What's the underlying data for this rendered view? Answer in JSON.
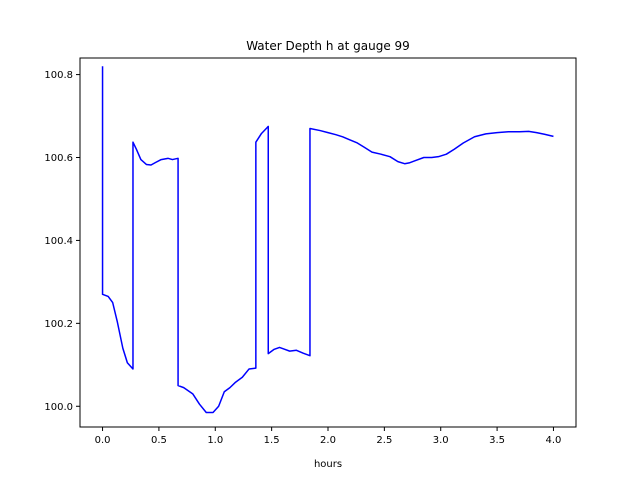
{
  "chart_data": {
    "type": "line",
    "title": "Water Depth h at gauge 99",
    "xlabel": "hours",
    "ylabel": "",
    "xlim": [
      -0.2,
      4.2
    ],
    "ylim": [
      99.95,
      100.84
    ],
    "x_ticks": [
      0.0,
      0.5,
      1.0,
      1.5,
      2.0,
      2.5,
      3.0,
      3.5,
      4.0
    ],
    "x_tick_labels": [
      "0.0",
      "0.5",
      "1.0",
      "1.5",
      "2.0",
      "2.5",
      "3.0",
      "3.5",
      "4.0"
    ],
    "y_ticks": [
      100.0,
      100.2,
      100.4,
      100.6,
      100.8
    ],
    "y_tick_labels": [
      "100.0",
      "100.2",
      "100.4",
      "100.6",
      "100.8"
    ],
    "grid": false,
    "legend": "none",
    "series": [
      {
        "color": "#0000ff",
        "x": [
          0.0,
          0.0,
          0.0,
          0.05,
          0.09,
          0.13,
          0.18,
          0.22,
          0.27,
          0.27,
          0.3,
          0.34,
          0.39,
          0.43,
          0.47,
          0.52,
          0.58,
          0.62,
          0.67,
          0.67,
          0.72,
          0.8,
          0.86,
          0.92,
          0.98,
          1.03,
          1.08,
          1.13,
          1.18,
          1.24,
          1.3,
          1.36,
          1.36,
          1.41,
          1.46,
          1.47,
          1.47,
          1.52,
          1.57,
          1.61,
          1.66,
          1.72,
          1.78,
          1.84,
          1.84,
          1.93,
          2.0,
          2.07,
          2.13,
          2.19,
          2.26,
          2.32,
          2.39,
          2.47,
          2.55,
          2.62,
          2.68,
          2.72,
          2.77,
          2.85,
          2.92,
          2.98,
          3.05,
          3.12,
          3.2,
          3.3,
          3.4,
          3.5,
          3.6,
          3.7,
          3.78,
          3.85,
          3.92,
          4.0
        ],
        "y": [
          100.82,
          100.27,
          100.27,
          100.265,
          100.25,
          100.205,
          100.14,
          100.105,
          100.09,
          100.637,
          100.62,
          100.595,
          100.583,
          100.582,
          100.588,
          100.595,
          100.598,
          100.595,
          100.598,
          100.05,
          100.045,
          100.03,
          100.005,
          99.985,
          99.985,
          100.0,
          100.035,
          100.045,
          100.058,
          100.07,
          100.09,
          100.092,
          100.637,
          100.658,
          100.672,
          100.675,
          100.127,
          100.137,
          100.142,
          100.138,
          100.133,
          100.135,
          100.128,
          100.122,
          100.67,
          100.665,
          100.66,
          100.655,
          100.65,
          100.643,
          100.635,
          100.625,
          100.613,
          100.608,
          100.602,
          100.59,
          100.585,
          100.587,
          100.592,
          100.6,
          100.6,
          100.602,
          100.608,
          100.62,
          100.635,
          100.65,
          100.657,
          100.66,
          100.662,
          100.662,
          100.663,
          100.66,
          100.656,
          100.651
        ]
      }
    ]
  }
}
